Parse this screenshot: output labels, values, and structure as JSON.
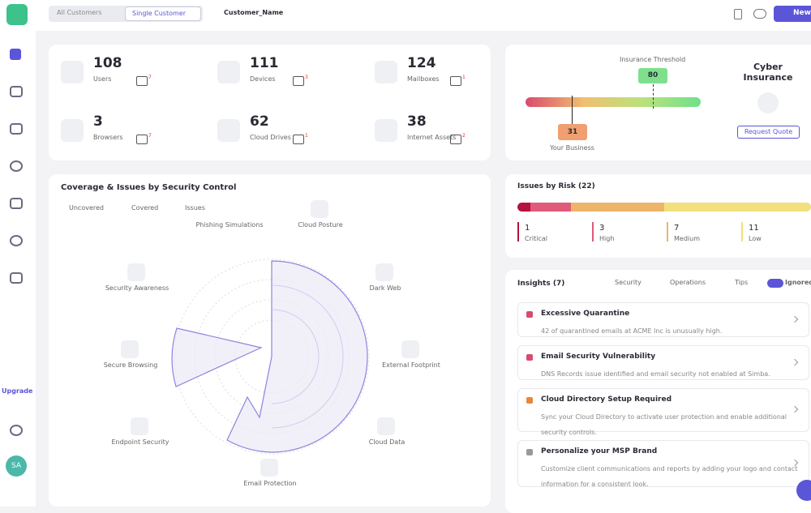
{
  "header": {
    "tabs": [
      "All Customers",
      "Single Customer"
    ],
    "customer": "Customer_Name",
    "button": "New"
  },
  "sidebar": {
    "upgrade": "Upgrade",
    "avatar": "SA"
  },
  "stats": [
    {
      "value": "108",
      "label": "Users",
      "alerts": "7"
    },
    {
      "value": "111",
      "label": "Devices",
      "alerts": "3"
    },
    {
      "value": "124",
      "label": "Mailboxes",
      "alerts": "1"
    },
    {
      "value": "3",
      "label": "Browsers",
      "alerts": "7"
    },
    {
      "value": "62",
      "label": "Cloud Drives",
      "alerts": "1"
    },
    {
      "value": "38",
      "label": "Internet Assets",
      "alerts": "2"
    }
  ],
  "insurance": {
    "threshold_label": "Insurance Threshold",
    "threshold": "80",
    "business": "31",
    "business_label": "Your Business",
    "title": "Cyber Insurance",
    "button": "Request Quote"
  },
  "coverage": {
    "title": "Coverage & Issues by Security Control",
    "legend": [
      "Uncovered",
      "Covered",
      "Issues"
    ],
    "controls": [
      "Phishing Simulations",
      "Cloud Posture",
      "Dark Web",
      "External Footprint",
      "Cloud Data",
      "Email Protection",
      "Endpoint Security",
      "Secure Browsing",
      "Security Awareness"
    ]
  },
  "risk": {
    "title": "Issues by Risk (22)",
    "levels": [
      {
        "count": 1,
        "label": "Critical",
        "color": "#b5123f"
      },
      {
        "count": 3,
        "label": "High",
        "color": "#e05a7a"
      },
      {
        "count": 7,
        "label": "Medium",
        "color": "#eeb46a"
      },
      {
        "count": 11,
        "label": "Low",
        "color": "#f2e07c"
      }
    ]
  },
  "insights": {
    "title": "Insights (7)",
    "filters": [
      "Security",
      "Operations",
      "Tips",
      "Ignored"
    ],
    "items": [
      {
        "title": "Excessive Quarantine",
        "text": "42 of quarantined emails at ACME Inc is unusually high."
      },
      {
        "title": "Email Security Vulnerability",
        "text": "DNS Records issue identified and email security not enabled at Simba."
      },
      {
        "title": "Cloud Directory Setup Required",
        "text": "Sync your Cloud Directory to activate user protection and enable additional security controls."
      },
      {
        "title": "Personalize your MSP Brand",
        "text": "Customize client communications and reports by adding your logo and contact information for a consistent look."
      }
    ]
  }
}
